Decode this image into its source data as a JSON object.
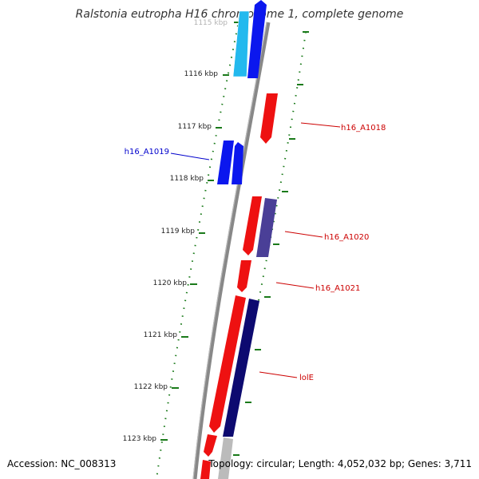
{
  "title": "Ralstonia eutropha H16 chromosome 1, complete genome",
  "accession": "Accession: NC_008313",
  "topology": "Topology: circular; Length: 4,052,032 bp; Genes: 3,711",
  "colors": {
    "backbone": "#888888",
    "ticks": "#1a7a1a",
    "tick_label": "#222222",
    "forward_red": "#ee1111",
    "reverse_blue": "#0b17ee",
    "cyan": "#23b9ee",
    "purple": "#4a3f97",
    "navy": "#0d0a70",
    "grey": "#bbbbbb",
    "label_red": "#cc0000",
    "label_blue": "#0000cc"
  },
  "ticks": [
    {
      "label": "1115 kbp"
    },
    {
      "label": "1116 kbp"
    },
    {
      "label": "1117 kbp"
    },
    {
      "label": "1118 kbp"
    },
    {
      "label": "1119 kbp"
    },
    {
      "label": "1120 kbp"
    },
    {
      "label": "1121 kbp"
    },
    {
      "label": "1122 kbp"
    },
    {
      "label": "1123 kbp"
    }
  ],
  "gene_labels": [
    {
      "name": "h16_A1018",
      "color": "#cc0000"
    },
    {
      "name": "h16_A1019",
      "color": "#0000cc"
    },
    {
      "name": "h16_A1020",
      "color": "#cc0000"
    },
    {
      "name": "h16_A1021",
      "color": "#cc0000"
    },
    {
      "name": "lolE",
      "color": "#cc0000"
    }
  ]
}
